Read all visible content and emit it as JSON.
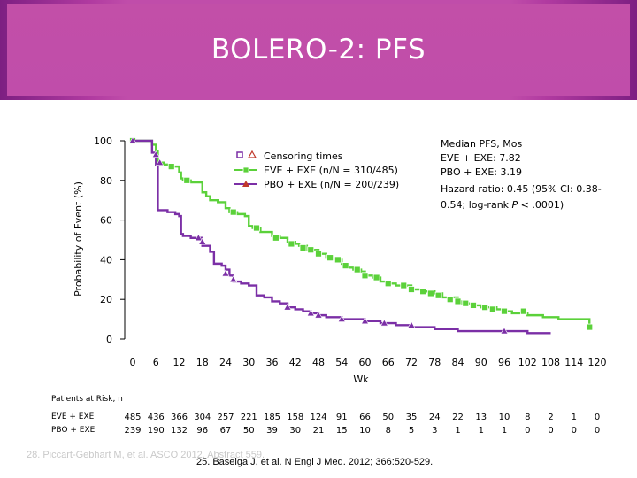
{
  "slide": {
    "title": "BOLERO-2: PFS",
    "footnote_faded": "28. Piccart-Gebhart M, et al. ASCO 2012. Abstract 559.",
    "footnote": "25. Baselga J, et al. N Engl J Med. 2012; 366:520-529."
  },
  "chart_data": {
    "type": "line",
    "title": "BOLERO-2: PFS",
    "xlabel": "Wk",
    "ylabel": "Probability of Event (%)",
    "xlim": [
      0,
      120
    ],
    "ylim": [
      0,
      100
    ],
    "xticks": [
      0,
      6,
      12,
      18,
      24,
      30,
      36,
      42,
      48,
      54,
      60,
      66,
      72,
      78,
      84,
      90,
      96,
      102,
      108,
      114,
      120
    ],
    "yticks": [
      0,
      20,
      40,
      60,
      80,
      100
    ],
    "legend": {
      "placement": "top-center",
      "entries": [
        "Censoring times",
        "EVE + EXE (n/N = 310/485)",
        "PBO + EXE (n/N = 200/239)"
      ]
    },
    "annotation": {
      "heading": "Median PFS, Mos",
      "lines": [
        "EVE + EXE: 7.82",
        "PBO + EXE: 3.19",
        "Hazard ratio: 0.45 (95% CI: 0.38-",
        "0.54; log-rank "
      ],
      "p_label": "P",
      "p_value": " < .0001)"
    },
    "series": [
      {
        "name": "EVE + EXE",
        "color": "#5bd13a",
        "marker": "square",
        "points": [
          [
            0,
            100
          ],
          [
            4,
            100
          ],
          [
            5,
            98
          ],
          [
            6,
            95
          ],
          [
            6.5,
            89
          ],
          [
            8,
            88
          ],
          [
            10,
            87
          ],
          [
            12,
            84
          ],
          [
            12.5,
            81
          ],
          [
            13,
            80
          ],
          [
            15,
            79
          ],
          [
            18,
            74
          ],
          [
            19,
            72
          ],
          [
            20,
            70
          ],
          [
            22,
            69
          ],
          [
            24,
            66
          ],
          [
            25,
            64
          ],
          [
            27,
            63
          ],
          [
            29,
            62
          ],
          [
            30,
            57
          ],
          [
            31,
            56
          ],
          [
            33,
            54
          ],
          [
            35,
            54
          ],
          [
            36,
            52
          ],
          [
            38,
            51
          ],
          [
            40,
            49
          ],
          [
            42,
            48
          ],
          [
            43,
            47
          ],
          [
            45,
            45
          ],
          [
            47,
            45
          ],
          [
            48,
            43
          ],
          [
            50,
            41
          ],
          [
            52,
            40
          ],
          [
            54,
            38
          ],
          [
            55,
            36
          ],
          [
            57,
            35
          ],
          [
            59,
            34
          ],
          [
            60,
            32
          ],
          [
            62,
            31
          ],
          [
            64,
            29
          ],
          [
            66,
            28
          ],
          [
            68,
            27
          ],
          [
            72,
            25
          ],
          [
            75,
            24
          ],
          [
            78,
            23
          ],
          [
            80,
            21
          ],
          [
            84,
            19
          ],
          [
            85,
            18
          ],
          [
            88,
            17
          ],
          [
            90,
            16
          ],
          [
            94,
            15
          ],
          [
            96,
            14
          ],
          [
            98,
            13
          ],
          [
            102,
            12
          ],
          [
            106,
            11
          ],
          [
            110,
            10
          ],
          [
            114,
            10
          ],
          [
            118,
            6
          ]
        ],
        "censor_marks": [
          [
            0,
            100
          ],
          [
            10,
            87
          ],
          [
            14,
            80
          ],
          [
            26,
            64
          ],
          [
            32,
            56
          ],
          [
            37,
            51
          ],
          [
            41,
            48
          ],
          [
            44,
            46
          ],
          [
            46,
            45
          ],
          [
            48,
            43
          ],
          [
            51,
            41
          ],
          [
            53,
            40
          ],
          [
            55,
            37
          ],
          [
            58,
            35
          ],
          [
            60,
            32
          ],
          [
            63,
            31
          ],
          [
            66,
            28
          ],
          [
            70,
            27
          ],
          [
            72,
            25
          ],
          [
            75,
            24
          ],
          [
            77,
            23
          ],
          [
            79,
            22
          ],
          [
            82,
            20
          ],
          [
            84,
            19
          ],
          [
            86,
            18
          ],
          [
            88,
            17
          ],
          [
            91,
            16
          ],
          [
            93,
            15
          ],
          [
            96,
            14
          ],
          [
            101,
            14
          ],
          [
            118,
            6
          ]
        ]
      },
      {
        "name": "PBO + EXE",
        "color": "#7b2fa6",
        "marker": "triangle",
        "points": [
          [
            0,
            100
          ],
          [
            4,
            100
          ],
          [
            5,
            94
          ],
          [
            6,
            88
          ],
          [
            6.5,
            65
          ],
          [
            9,
            64
          ],
          [
            11,
            63
          ],
          [
            12,
            62
          ],
          [
            12.5,
            53
          ],
          [
            13,
            52
          ],
          [
            15,
            51
          ],
          [
            17,
            51
          ],
          [
            18,
            47
          ],
          [
            20,
            44
          ],
          [
            21,
            38
          ],
          [
            23,
            37
          ],
          [
            24,
            35
          ],
          [
            25,
            32
          ],
          [
            26,
            29
          ],
          [
            28,
            28
          ],
          [
            30,
            27
          ],
          [
            32,
            22
          ],
          [
            34,
            21
          ],
          [
            36,
            19
          ],
          [
            38,
            18
          ],
          [
            40,
            16
          ],
          [
            42,
            15
          ],
          [
            44,
            14
          ],
          [
            46,
            13
          ],
          [
            48,
            12
          ],
          [
            50,
            11
          ],
          [
            54,
            10
          ],
          [
            60,
            9
          ],
          [
            64,
            8
          ],
          [
            68,
            7
          ],
          [
            72,
            6
          ],
          [
            78,
            5
          ],
          [
            84,
            4
          ],
          [
            90,
            4
          ],
          [
            96,
            4
          ],
          [
            102,
            3
          ],
          [
            108,
            3
          ]
        ],
        "censor_marks": [
          [
            0,
            100
          ],
          [
            6,
            93
          ],
          [
            7,
            89
          ],
          [
            17,
            51
          ],
          [
            18,
            49
          ],
          [
            24,
            33
          ],
          [
            26,
            30
          ],
          [
            40,
            16
          ],
          [
            46,
            13
          ],
          [
            48,
            12
          ],
          [
            54,
            10
          ],
          [
            60,
            9
          ],
          [
            65,
            8
          ],
          [
            72,
            7
          ],
          [
            96,
            4
          ]
        ]
      }
    ],
    "patients_at_risk": {
      "title": "Patients at Risk, n",
      "rows": [
        {
          "label": "EVE + EXE",
          "values": [
            "485",
            "436",
            "366",
            "304",
            "257",
            "221",
            "185",
            "158",
            "124",
            "91",
            "66",
            "50",
            "35",
            "24",
            "22",
            "13",
            "10",
            "8",
            "2",
            "1",
            "0"
          ]
        },
        {
          "label": "PBO + EXE",
          "values": [
            "239",
            "190",
            "132",
            "96",
            "67",
            "50",
            "39",
            "30",
            "21",
            "15",
            "10",
            "8",
            "5",
            "3",
            "1",
            "1",
            "1",
            "0",
            "0",
            "0",
            "0"
          ]
        }
      ]
    }
  }
}
